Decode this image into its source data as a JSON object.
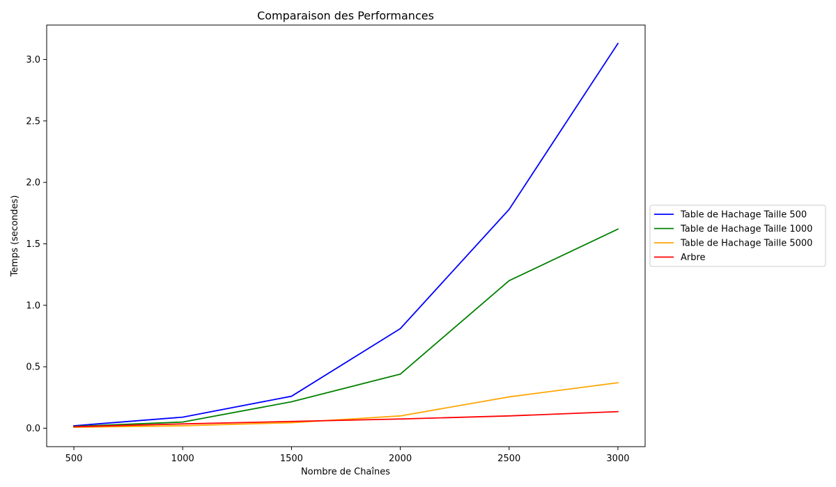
{
  "chart_data": {
    "type": "line",
    "title": "Comparaison des Performances",
    "xlabel": "Nombre de Chaînes",
    "ylabel": "Temps (secondes)",
    "x": [
      500,
      1000,
      1500,
      2000,
      2500,
      3000
    ],
    "xticks": [
      500,
      1000,
      1500,
      2000,
      2500,
      3000
    ],
    "yticks": [
      0.0,
      0.5,
      1.0,
      1.5,
      2.0,
      2.5,
      3.0
    ],
    "ytick_labels": [
      "0.0",
      "0.5",
      "1.0",
      "1.5",
      "2.0",
      "2.5",
      "3.0"
    ],
    "xlim": [
      375,
      3125
    ],
    "ylim": [
      -0.15,
      3.28
    ],
    "grid": false,
    "legend_position": "center-right-outside",
    "series": [
      {
        "name": "Table de Hachage Taille 500",
        "color": "#0000ff",
        "values": [
          0.02,
          0.09,
          0.26,
          0.81,
          1.78,
          3.13
        ]
      },
      {
        "name": "Table de Hachage Taille 1000",
        "color": "#008000",
        "values": [
          0.015,
          0.05,
          0.215,
          0.44,
          1.2,
          1.62
        ]
      },
      {
        "name": "Table de Hachage Taille 5000",
        "color": "#ffa500",
        "values": [
          0.008,
          0.02,
          0.045,
          0.1,
          0.255,
          0.37
        ]
      },
      {
        "name": "Arbre",
        "color": "#ff0000",
        "values": [
          0.012,
          0.035,
          0.055,
          0.075,
          0.1,
          0.135
        ]
      }
    ]
  }
}
